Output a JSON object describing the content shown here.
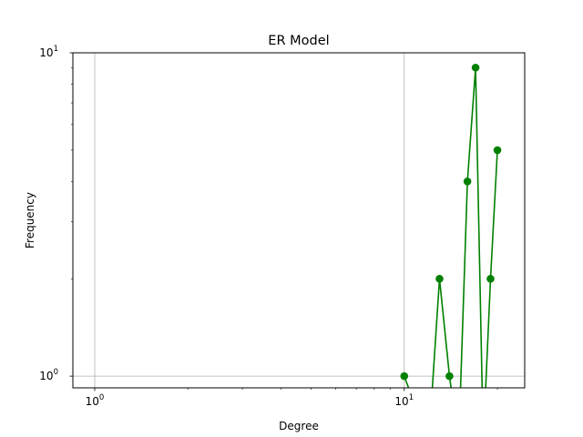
{
  "chart_data": {
    "type": "line",
    "title": "ER Model",
    "xlabel": "Degree",
    "ylabel": "Frequency",
    "xscale": "log",
    "yscale": "log",
    "xlim": [
      0.85,
      24.5
    ],
    "ylim": [
      0.92,
      10
    ],
    "grid": true,
    "series": [
      {
        "color": "#008000",
        "marker": "circle",
        "x": [
          10,
          12,
          13,
          14,
          15,
          16,
          17,
          18,
          19,
          20
        ],
        "y": [
          1,
          0,
          2,
          1,
          0,
          4,
          9,
          0,
          2,
          5
        ]
      }
    ],
    "xticks": [
      {
        "value": 1,
        "base": "10",
        "exp": "0"
      },
      {
        "value": 10,
        "base": "10",
        "exp": "1"
      }
    ],
    "yticks": [
      {
        "value": 1,
        "base": "10",
        "exp": "0"
      },
      {
        "value": 10,
        "base": "10",
        "exp": "1"
      }
    ]
  }
}
